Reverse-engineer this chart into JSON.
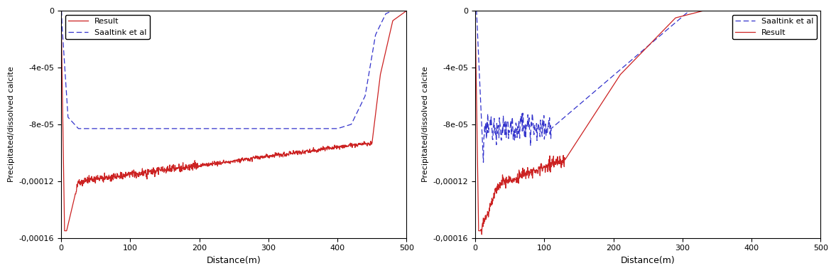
{
  "left_plot": {
    "xlabel": "Distance(m)",
    "ylabel": "Precipitated/dissolved calcite",
    "xlim": [
      0,
      500
    ],
    "ylim": [
      -0.00016,
      0
    ],
    "yticks": [
      0,
      -4e-05,
      -8e-05,
      -0.00012,
      -0.00016
    ],
    "ytick_labels": [
      "0",
      "-4e-05",
      "-8e-05",
      "-0,00012",
      "-0,00016"
    ],
    "result_color": "#cc2222",
    "saaltink_color": "#3333cc",
    "legend_loc": "upper left"
  },
  "right_plot": {
    "xlabel": "Distance(m)",
    "ylabel": "Precipitated/dissolved calcite",
    "xlim": [
      0,
      500
    ],
    "ylim": [
      -0.00016,
      0
    ],
    "yticks": [
      0,
      -4e-05,
      -8e-05,
      -0.00012,
      -0.00016
    ],
    "ytick_labels": [
      "0",
      "-4e-05",
      "-8e-05",
      "-0,00012",
      "-0,00016"
    ],
    "result_color": "#cc2222",
    "saaltink_color": "#3333cc",
    "legend_loc": "upper right"
  }
}
